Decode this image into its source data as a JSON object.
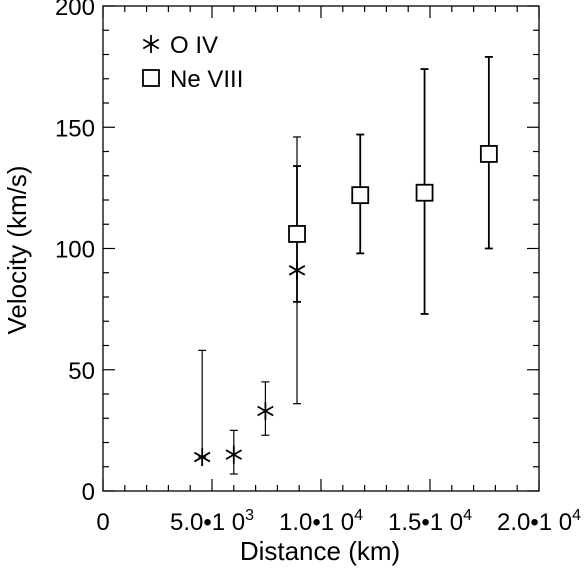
{
  "chart_data": {
    "type": "scatter",
    "title": "",
    "xlabel": "Distance (km)",
    "ylabel": "Velocity (km/s)",
    "xlim": [
      0,
      20000
    ],
    "ylim": [
      0,
      200
    ],
    "x_ticks": [
      {
        "value": 0,
        "base": "0",
        "exp": ""
      },
      {
        "value": 5000,
        "base": "5.0•1 0",
        "exp": "3"
      },
      {
        "value": 10000,
        "base": "1.0•1 0",
        "exp": "4"
      },
      {
        "value": 15000,
        "base": "1.5•1 0",
        "exp": "4"
      },
      {
        "value": 20000,
        "base": "2.0•1 0",
        "exp": "4"
      }
    ],
    "y_ticks": [
      {
        "value": 0,
        "label": "0"
      },
      {
        "value": 50,
        "label": "50"
      },
      {
        "value": 100,
        "label": "100"
      },
      {
        "value": 150,
        "label": "150"
      },
      {
        "value": 200,
        "label": "200"
      }
    ],
    "grid": false,
    "legend_position": "top-left",
    "series": [
      {
        "name": "O IV",
        "marker": "asterisk",
        "color": "#000000",
        "points": [
          {
            "x": 4550,
            "y": 14,
            "err_low": 14,
            "err_high": 58
          },
          {
            "x": 6000,
            "y": 15,
            "err_low": 7,
            "err_high": 25
          },
          {
            "x": 7450,
            "y": 33,
            "err_low": 23,
            "err_high": 45
          },
          {
            "x": 8900,
            "y": 91,
            "err_low": 36,
            "err_high": 146
          }
        ]
      },
      {
        "name": "Ne VIII",
        "marker": "square",
        "color": "#000000",
        "points": [
          {
            "x": 8900,
            "y": 106,
            "err_low": 78,
            "err_high": 134
          },
          {
            "x": 11800,
            "y": 122,
            "err_low": 98,
            "err_high": 147
          },
          {
            "x": 14750,
            "y": 123,
            "err_low": 73,
            "err_high": 174
          },
          {
            "x": 17700,
            "y": 139,
            "err_low": 100,
            "err_high": 179
          }
        ]
      }
    ]
  }
}
